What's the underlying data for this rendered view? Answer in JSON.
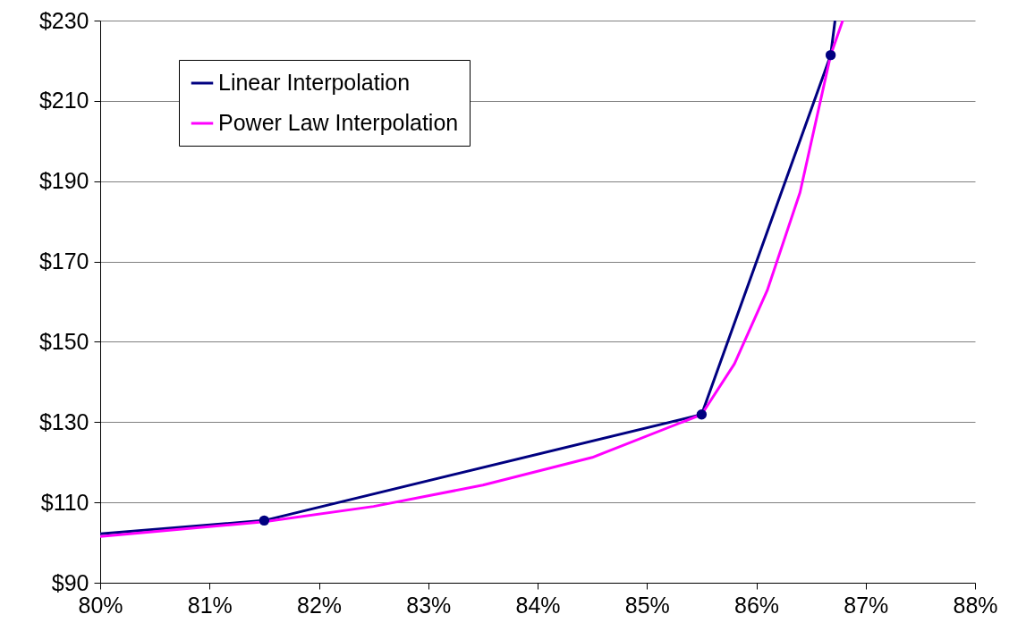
{
  "chart_data": {
    "type": "line",
    "series": [
      {
        "name": "Linear Interpolation",
        "color": "#000080",
        "marker": "circle",
        "x": [
          80,
          81.5,
          85.5,
          86.68,
          86.72
        ],
        "values": [
          102.2,
          105.5,
          131.9,
          221.4,
          230
        ]
      },
      {
        "name": "Power Law Interpolation",
        "color": "#ff00ff",
        "marker": "none",
        "x": [
          80,
          81.5,
          82.5,
          83.5,
          84.5,
          85.5,
          85.8,
          86.1,
          86.4,
          86.68,
          86.79
        ],
        "values": [
          101.5,
          105.2,
          109,
          114.3,
          121.2,
          131.9,
          144.5,
          162.8,
          187.2,
          221.4,
          230
        ]
      }
    ],
    "xlim": [
      80,
      88
    ],
    "xticks": [
      {
        "value": 80,
        "label": "80%"
      },
      {
        "value": 81,
        "label": "81%"
      },
      {
        "value": 82,
        "label": "82%"
      },
      {
        "value": 83,
        "label": "83%"
      },
      {
        "value": 84,
        "label": "84%"
      },
      {
        "value": 85,
        "label": "85%"
      },
      {
        "value": 86,
        "label": "86%"
      },
      {
        "value": 87,
        "label": "87%"
      },
      {
        "value": 88,
        "label": "88%"
      }
    ],
    "ylim": [
      90,
      230
    ],
    "yticks": [
      {
        "value": 90,
        "label": "$90"
      },
      {
        "value": 110,
        "label": "$110"
      },
      {
        "value": 130,
        "label": "$130"
      },
      {
        "value": 150,
        "label": "$150"
      },
      {
        "value": 170,
        "label": "$170"
      },
      {
        "value": 190,
        "label": "$190"
      },
      {
        "value": 210,
        "label": "$210"
      },
      {
        "value": 230,
        "label": "$230"
      }
    ],
    "grid": "y",
    "legend": "top left",
    "line_style": "solid"
  }
}
